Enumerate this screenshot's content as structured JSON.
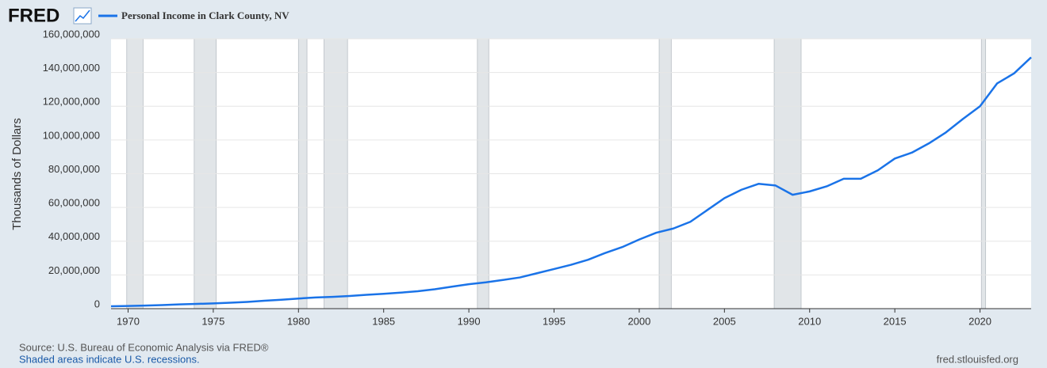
{
  "chart_data": {
    "type": "line",
    "logo": "FRED",
    "title": "Personal Income in Clark County, NV",
    "y_label": "Thousands of Dollars",
    "source": "Source: U.S. Bureau of Economic Analysis via FRED®",
    "note": "Shaded areas indicate U.S. recessions.",
    "footer": "fred.stlouisfed.org",
    "x": [
      1969,
      1970,
      1971,
      1972,
      1973,
      1974,
      1975,
      1976,
      1977,
      1978,
      1979,
      1980,
      1981,
      1982,
      1983,
      1984,
      1985,
      1986,
      1987,
      1988,
      1989,
      1990,
      1991,
      1992,
      1993,
      1994,
      1995,
      1996,
      1997,
      1998,
      1999,
      2000,
      2001,
      2002,
      2003,
      2004,
      2005,
      2006,
      2007,
      2008,
      2009,
      2010,
      2011,
      2012,
      2013,
      2014,
      2015,
      2016,
      2017,
      2018,
      2019,
      2020,
      2021,
      2022,
      2023
    ],
    "series": [
      {
        "name": "Personal Income in Clark County, NV",
        "color": "#1a73e8",
        "values": [
          1400000,
          1600000,
          1800000,
          2100000,
          2500000,
          2800000,
          3100000,
          3500000,
          4000000,
          4700000,
          5300000,
          6000000,
          6600000,
          7000000,
          7500000,
          8200000,
          8800000,
          9500000,
          10300000,
          11500000,
          13000000,
          14500000,
          15600000,
          17000000,
          18500000,
          21000000,
          23500000,
          26000000,
          29000000,
          33000000,
          36500000,
          41000000,
          45000000,
          47500000,
          51500000,
          58500000,
          65500000,
          70500000,
          74000000,
          73000000,
          67500000,
          69500000,
          72500000,
          77000000,
          77000000,
          82000000,
          89000000,
          92500000,
          98000000,
          104500000,
          112500000,
          120000000,
          133500000,
          139500000,
          149000000
        ]
      }
    ],
    "recessions": [
      [
        1969.92,
        1970.88
      ],
      [
        1973.88,
        1975.17
      ],
      [
        1980.0,
        1980.5
      ],
      [
        1981.5,
        1982.88
      ],
      [
        1990.5,
        1991.17
      ],
      [
        2001.17,
        2001.88
      ],
      [
        2007.92,
        2009.5
      ],
      [
        2020.08,
        2020.33
      ]
    ],
    "xlim": [
      1969,
      2023
    ],
    "xticks": [
      1970,
      1975,
      1980,
      1985,
      1990,
      1995,
      2000,
      2005,
      2010,
      2015,
      2020
    ],
    "ylim": [
      0,
      160000000
    ],
    "yticks": [
      0,
      {
        "value": 20000000,
        "label": "20,000,000"
      },
      {
        "value": 40000000,
        "label": "40,000,000"
      },
      {
        "value": 60000000,
        "label": "60,000,000"
      },
      {
        "value": 80000000,
        "label": "80,000,000"
      },
      {
        "value": 100000000,
        "label": "100,000,000"
      },
      {
        "value": 120000000,
        "label": "120,000,000"
      },
      {
        "value": 140000000,
        "label": "140,000,000"
      },
      {
        "value": 160000000,
        "label": "160,000,000"
      }
    ],
    "grid": true
  }
}
